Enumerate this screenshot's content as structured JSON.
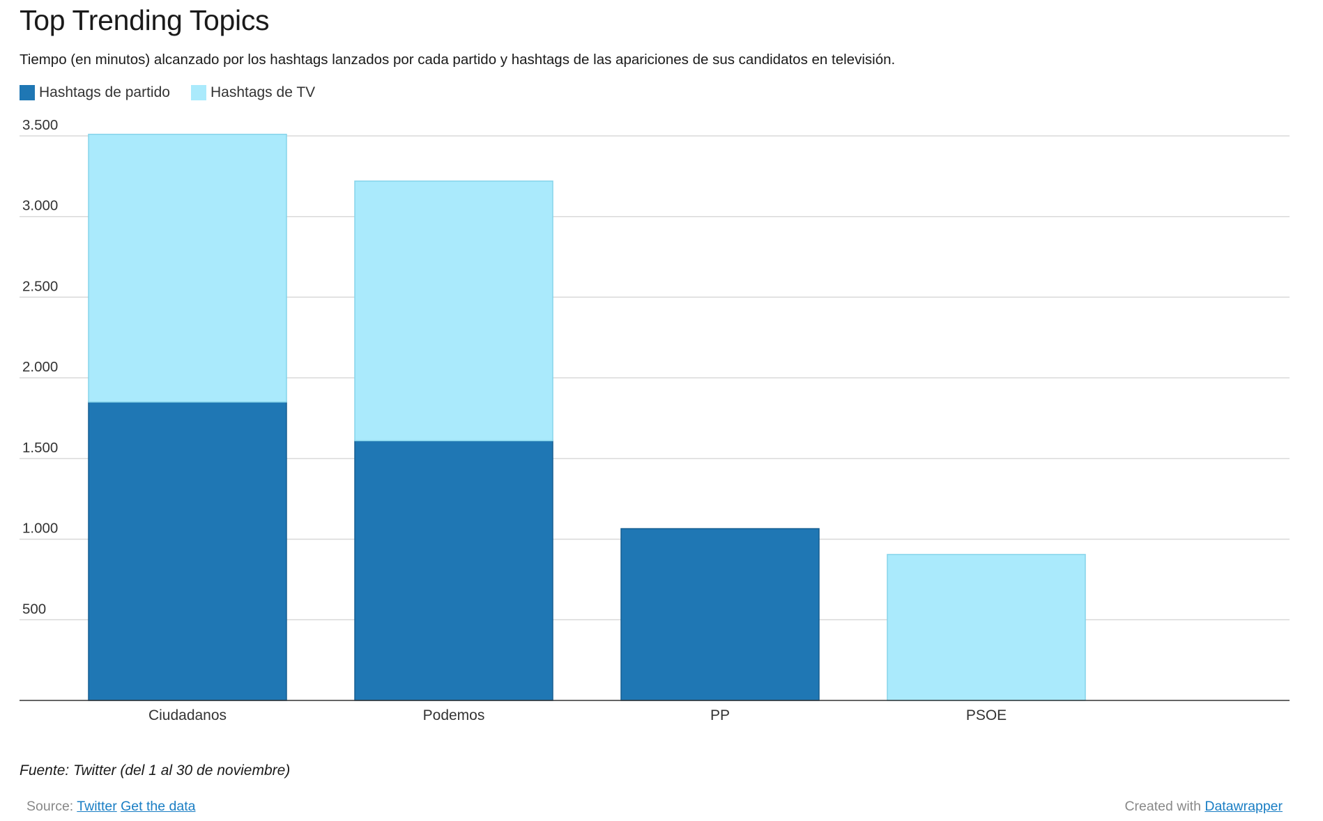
{
  "header": {
    "title": "Top Trending Topics",
    "subtitle": "Tiempo (en minutos) alcanzado por los hashtags lanzados por cada partido y hashtags de las apariciones de sus candidatos en televisión."
  },
  "legend": [
    {
      "label": "Hashtags de partido",
      "color": "#1f77b4"
    },
    {
      "label": "Hashtags de TV",
      "color": "#aaeafc"
    }
  ],
  "chart_data": {
    "type": "bar",
    "stacked": true,
    "title": "Top Trending Topics",
    "categories": [
      "Ciudadanos",
      "Podemos",
      "PP",
      "PSOE"
    ],
    "series": [
      {
        "name": "Hashtags de partido",
        "color": "#1f77b4",
        "values": [
          1850,
          1610,
          1065,
          0
        ]
      },
      {
        "name": "Hashtags de TV",
        "color": "#aaeafc",
        "values": [
          1660,
          1610,
          0,
          905
        ]
      }
    ],
    "ylim": [
      0,
      3500
    ],
    "yticks": [
      500,
      1000,
      1500,
      2000,
      2500,
      3000,
      3500
    ],
    "ytick_labels": [
      "500",
      "1.000",
      "1.500",
      "2.000",
      "2.500",
      "3.000",
      "3.500"
    ],
    "grid": true,
    "xlabel": "",
    "ylabel": ""
  },
  "notes": "Fuente: Twitter (del 1 al 30 de noviembre)",
  "footer": {
    "source_prefix": "Source:",
    "source_link": "Twitter",
    "data_link": "Get the data",
    "created_prefix": "Created with",
    "created_link": "Datawrapper"
  }
}
